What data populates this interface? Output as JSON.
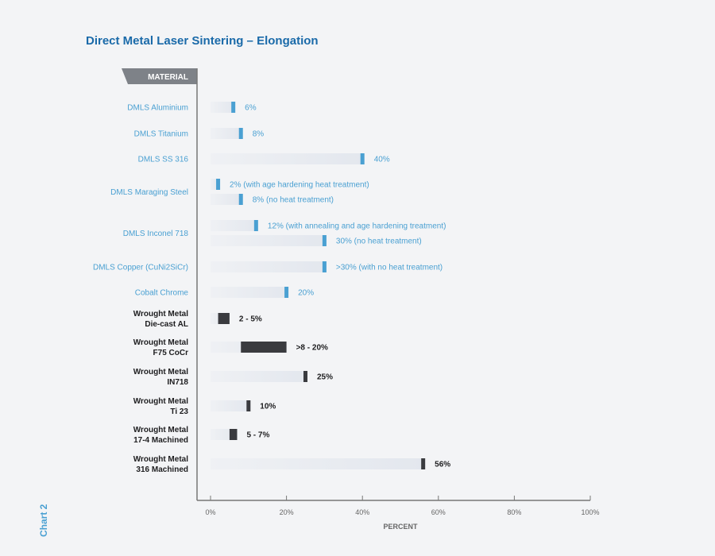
{
  "header": {
    "title": "Direct Metal Laser Sintering – Elongation",
    "side_label": "Chart 2",
    "material_header": "MATERIAL"
  },
  "colors": {
    "dmls": "#4aa0d2",
    "wrought": "#3a3b3f",
    "title": "#1a6aa9",
    "axis": "#777777",
    "header_bg": "#7e8288",
    "track": "#e3e7ee"
  },
  "chart_data": {
    "type": "bar",
    "title": "Direct Metal Laser Sintering – Elongation",
    "xlabel": "PERCENT",
    "ylabel": "MATERIAL",
    "xlim": [
      0,
      100
    ],
    "xticks": [
      0,
      20,
      40,
      60,
      80,
      100
    ],
    "xtick_labels": [
      "0%",
      "20%",
      "40%",
      "60%",
      "80%",
      "100%"
    ],
    "grid": false,
    "materials": [
      {
        "name": [
          "DMLS Aluminium"
        ],
        "group": "dmls",
        "bars": [
          {
            "start": 6,
            "end": 6,
            "label": "6%"
          }
        ]
      },
      {
        "name": [
          "DMLS Titanium"
        ],
        "group": "dmls",
        "bars": [
          {
            "start": 8,
            "end": 8,
            "label": "8%"
          }
        ]
      },
      {
        "name": [
          "DMLS SS 316"
        ],
        "group": "dmls",
        "bars": [
          {
            "start": 40,
            "end": 40,
            "label": "40%"
          }
        ]
      },
      {
        "name": [
          "DMLS Maraging Steel"
        ],
        "group": "dmls",
        "bars": [
          {
            "start": 2,
            "end": 2,
            "label": "2% (with age hardening heat treatment)"
          },
          {
            "start": 8,
            "end": 8,
            "label": "8% (no heat treatment)"
          }
        ]
      },
      {
        "name": [
          "DMLS Inconel 718"
        ],
        "group": "dmls",
        "bars": [
          {
            "start": 12,
            "end": 12,
            "label": "12% (with annealing and age hardening treatment)"
          },
          {
            "start": 30,
            "end": 30,
            "label": "30% (no heat treatment)"
          }
        ]
      },
      {
        "name": [
          "DMLS Copper (CuNi2SiCr)"
        ],
        "group": "dmls",
        "bars": [
          {
            "start": 30,
            "end": 30,
            "label": ">30% (with no heat treatment)"
          }
        ]
      },
      {
        "name": [
          "Cobalt Chrome"
        ],
        "group": "dmls",
        "bars": [
          {
            "start": 20,
            "end": 20,
            "label": "20%"
          }
        ]
      },
      {
        "name": [
          "Wrought Metal",
          "Die-cast AL"
        ],
        "group": "wrought",
        "bars": [
          {
            "start": 2,
            "end": 5,
            "label": "2 - 5%"
          }
        ]
      },
      {
        "name": [
          "Wrought Metal",
          "F75 CoCr"
        ],
        "group": "wrought",
        "bars": [
          {
            "start": 8,
            "end": 20,
            "label": ">8 - 20%"
          }
        ]
      },
      {
        "name": [
          "Wrought Metal",
          "IN718"
        ],
        "group": "wrought",
        "bars": [
          {
            "start": 25,
            "end": 25,
            "label": "25%"
          }
        ]
      },
      {
        "name": [
          "Wrought Metal",
          "Ti 23"
        ],
        "group": "wrought",
        "bars": [
          {
            "start": 10,
            "end": 10,
            "label": "10%"
          }
        ]
      },
      {
        "name": [
          "Wrought Metal",
          "17-4 Machined"
        ],
        "group": "wrought",
        "bars": [
          {
            "start": 5,
            "end": 7,
            "label": "5 - 7%"
          }
        ]
      },
      {
        "name": [
          "Wrought Metal",
          "316 Machined"
        ],
        "group": "wrought",
        "bars": [
          {
            "start": 56,
            "end": 56,
            "label": "56%"
          }
        ]
      }
    ]
  }
}
